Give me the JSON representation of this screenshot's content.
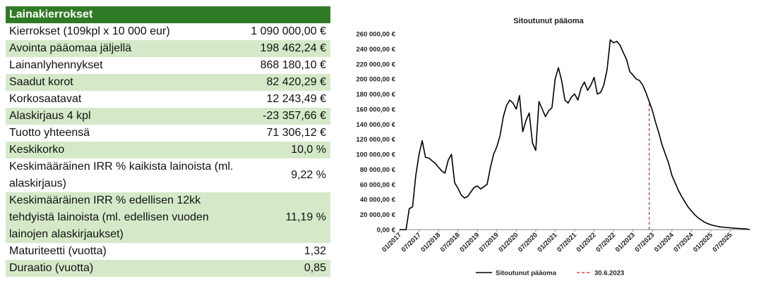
{
  "table": {
    "header": "Lainakierrokset",
    "rows": [
      {
        "label": "Kierrokset (109kpl x 10 000 eur)",
        "value": "1 090 000,00 €"
      },
      {
        "label": "Avointa pääomaa jäljellä",
        "value": "198 462,24 €"
      },
      {
        "label": "Lainanlyhennykset",
        "value": "868 180,10 €"
      },
      {
        "label": "Saadut korot",
        "value": "82 420,29 €"
      },
      {
        "label": "Korkosaatavat",
        "value": "12 243,49 €"
      },
      {
        "label": "Alaskirjaus 4 kpl",
        "value": "-23 357,66 €"
      },
      {
        "label": "Tuotto yhteensä",
        "value": "71 306,12 €"
      },
      {
        "label": "Keskikorko",
        "value": "10,0 %"
      },
      {
        "label": "Keskimääräinen IRR % kaikista lainoista (ml. alaskirjaus)",
        "value": "9,22 %"
      },
      {
        "label": "Keskimääräinen IRR % edellisen 12kk tehdyistä lainoista (ml. edellisen vuoden lainojen alaskirjaukset)",
        "value": "11,19 %"
      },
      {
        "label": "Maturiteetti (vuotta)",
        "value": "1,32"
      },
      {
        "label": "Duraatio (vuotta)",
        "value": "0,85"
      }
    ]
  },
  "chart_data": {
    "type": "line",
    "title": "Sitoutunut pääoma",
    "ylim": [
      0,
      260000
    ],
    "yticks": [
      0,
      20000,
      40000,
      60000,
      80000,
      100000,
      120000,
      140000,
      160000,
      180000,
      200000,
      220000,
      240000,
      260000
    ],
    "ytick_labels": [
      "0,00 €",
      "20 000,00 €",
      "40 000,00 €",
      "60 000,00 €",
      "80 000,00 €",
      "100 000,00 €",
      "120 000,00 €",
      "140 000,00 €",
      "160 000,00 €",
      "180 000,00 €",
      "200 000,00 €",
      "220 000,00 €",
      "240 000,00 €",
      "260 000,00 €"
    ],
    "xlim": [
      "2017-01",
      "2026-01"
    ],
    "xticks": [
      "2017-01",
      "2017-07",
      "2018-01",
      "2018-07",
      "2019-01",
      "2019-07",
      "2020-01",
      "2020-07",
      "2021-01",
      "2021-07",
      "2022-01",
      "2022-07",
      "2023-01",
      "2023-07",
      "2024-01",
      "2024-07",
      "2025-01",
      "2025-07"
    ],
    "xtick_labels": [
      "01/2017",
      "07/2017",
      "01/2018",
      "07/2018",
      "01/2019",
      "07/2019",
      "01/2020",
      "07/2020",
      "01/2021",
      "07/2021",
      "01/2022",
      "07/2022",
      "01/2023",
      "07/2023",
      "01/2024",
      "07/2024",
      "01/2025",
      "07/2025"
    ],
    "series": [
      {
        "name": "Sitoutunut pääoma",
        "color": "#000000",
        "points": [
          [
            "2017-01",
            0
          ],
          [
            "2017-03",
            0
          ],
          [
            "2017-04",
            28000
          ],
          [
            "2017-05",
            30000
          ],
          [
            "2017-06",
            72000
          ],
          [
            "2017-07",
            100000
          ],
          [
            "2017-08",
            118000
          ],
          [
            "2017-09",
            96000
          ],
          [
            "2017-10",
            95000
          ],
          [
            "2017-12",
            88000
          ],
          [
            "2018-02",
            78000
          ],
          [
            "2018-03",
            75000
          ],
          [
            "2018-04",
            92000
          ],
          [
            "2018-05",
            100000
          ],
          [
            "2018-06",
            62000
          ],
          [
            "2018-07",
            55000
          ],
          [
            "2018-08",
            46000
          ],
          [
            "2018-09",
            42000
          ],
          [
            "2018-10",
            44000
          ],
          [
            "2018-12",
            56000
          ],
          [
            "2019-01",
            58000
          ],
          [
            "2019-02",
            54000
          ],
          [
            "2019-04",
            60000
          ],
          [
            "2019-05",
            82000
          ],
          [
            "2019-06",
            100000
          ],
          [
            "2019-07",
            110000
          ],
          [
            "2019-08",
            125000
          ],
          [
            "2019-09",
            150000
          ],
          [
            "2019-10",
            165000
          ],
          [
            "2019-11",
            172000
          ],
          [
            "2019-12",
            168000
          ],
          [
            "2020-01",
            160000
          ],
          [
            "2020-02",
            178000
          ],
          [
            "2020-03",
            130000
          ],
          [
            "2020-04",
            145000
          ],
          [
            "2020-05",
            155000
          ],
          [
            "2020-06",
            115000
          ],
          [
            "2020-07",
            105000
          ],
          [
            "2020-08",
            170000
          ],
          [
            "2020-09",
            160000
          ],
          [
            "2020-10",
            150000
          ],
          [
            "2020-11",
            158000
          ],
          [
            "2020-12",
            162000
          ],
          [
            "2021-01",
            200000
          ],
          [
            "2021-02",
            215000
          ],
          [
            "2021-03",
            198000
          ],
          [
            "2021-04",
            172000
          ],
          [
            "2021-05",
            168000
          ],
          [
            "2021-06",
            176000
          ],
          [
            "2021-07",
            180000
          ],
          [
            "2021-08",
            172000
          ],
          [
            "2021-09",
            188000
          ],
          [
            "2021-10",
            196000
          ],
          [
            "2021-11",
            185000
          ],
          [
            "2021-12",
            192000
          ],
          [
            "2022-01",
            202000
          ],
          [
            "2022-02",
            180000
          ],
          [
            "2022-03",
            182000
          ],
          [
            "2022-04",
            192000
          ],
          [
            "2022-05",
            212000
          ],
          [
            "2022-06",
            252000
          ],
          [
            "2022-07",
            248000
          ],
          [
            "2022-08",
            250000
          ],
          [
            "2022-09",
            245000
          ],
          [
            "2022-10",
            235000
          ],
          [
            "2022-11",
            226000
          ],
          [
            "2022-12",
            210000
          ],
          [
            "2023-01",
            205000
          ],
          [
            "2023-02",
            200000
          ],
          [
            "2023-03",
            198000
          ],
          [
            "2023-04",
            192000
          ],
          [
            "2023-05",
            182000
          ],
          [
            "2023-06",
            170000
          ],
          [
            "2023-07",
            158000
          ],
          [
            "2023-08",
            142000
          ],
          [
            "2023-09",
            128000
          ],
          [
            "2023-10",
            112000
          ],
          [
            "2023-11",
            100000
          ],
          [
            "2023-12",
            88000
          ],
          [
            "2024-01",
            72000
          ],
          [
            "2024-02",
            62000
          ],
          [
            "2024-03",
            52000
          ],
          [
            "2024-04",
            44000
          ],
          [
            "2024-05",
            37000
          ],
          [
            "2024-06",
            30000
          ],
          [
            "2024-07",
            25000
          ],
          [
            "2024-08",
            20000
          ],
          [
            "2024-09",
            16000
          ],
          [
            "2024-10",
            13000
          ],
          [
            "2024-11",
            10000
          ],
          [
            "2024-12",
            8000
          ],
          [
            "2025-01",
            6500
          ],
          [
            "2025-02",
            5200
          ],
          [
            "2025-03",
            4300
          ],
          [
            "2025-04",
            3600
          ],
          [
            "2025-06",
            2800
          ],
          [
            "2025-08",
            2000
          ],
          [
            "2025-10",
            1400
          ],
          [
            "2025-12",
            800
          ],
          [
            "2026-01",
            0
          ]
        ]
      }
    ],
    "marker": {
      "name": "30.6.2023",
      "x": "2023-06",
      "color": "#e02020",
      "style": "dashed"
    },
    "legend": {
      "position": "bottom"
    }
  }
}
